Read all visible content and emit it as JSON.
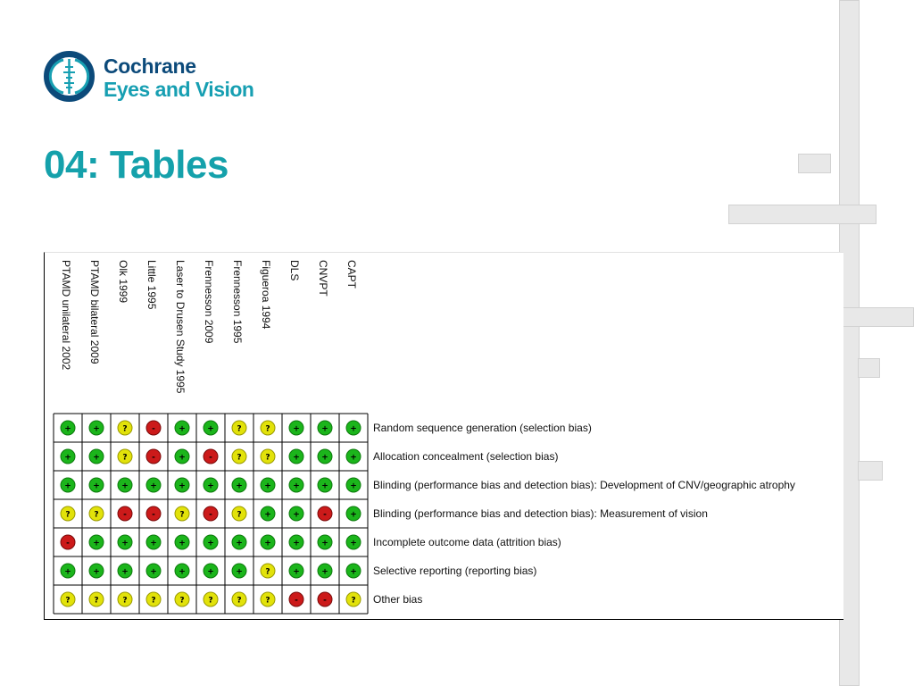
{
  "logo": {
    "line1": "Cochrane",
    "line2": "Eyes and Vision"
  },
  "title": "04: Tables",
  "colors": {
    "low": "#1bb51b",
    "unclear": "#e2e20a",
    "high": "#cc1a1a",
    "title": "#15a1ab"
  },
  "studies": [
    "PTAMD unilateral 2002",
    "PTAMD bilateral 2009",
    "Olk 1999",
    "Little 1995",
    "Laser to Drusen Study 1995",
    "Frennesson 2009",
    "Frennesson 1995",
    "Figueroa 1994",
    "DLS",
    "CNVPT",
    "CAPT"
  ],
  "domains": [
    "Random sequence generation (selection bias)",
    "Allocation concealment (selection bias)",
    "Blinding (performance bias and detection bias): Development of CNV/geographic atrophy",
    "Blinding (performance bias and detection bias): Measurement of vision",
    "Incomplete outcome data (attrition bias)",
    "Selective reporting (reporting bias)",
    "Other bias"
  ],
  "symbols": {
    "low": "+",
    "unclear": "?",
    "high": "-"
  },
  "judgements": [
    [
      "low",
      "low",
      "unclear",
      "high",
      "low",
      "low",
      "unclear",
      "unclear",
      "low",
      "low",
      "low"
    ],
    [
      "low",
      "low",
      "unclear",
      "high",
      "low",
      "high",
      "unclear",
      "unclear",
      "low",
      "low",
      "low"
    ],
    [
      "low",
      "low",
      "low",
      "low",
      "low",
      "low",
      "low",
      "low",
      "low",
      "low",
      "low"
    ],
    [
      "unclear",
      "unclear",
      "high",
      "high",
      "unclear",
      "high",
      "unclear",
      "low",
      "low",
      "high",
      "low"
    ],
    [
      "high",
      "low",
      "low",
      "low",
      "low",
      "low",
      "low",
      "low",
      "low",
      "low",
      "low"
    ],
    [
      "low",
      "low",
      "low",
      "low",
      "low",
      "low",
      "low",
      "unclear",
      "low",
      "low",
      "low"
    ],
    [
      "unclear",
      "unclear",
      "unclear",
      "unclear",
      "unclear",
      "unclear",
      "unclear",
      "unclear",
      "high",
      "high",
      "unclear"
    ]
  ]
}
